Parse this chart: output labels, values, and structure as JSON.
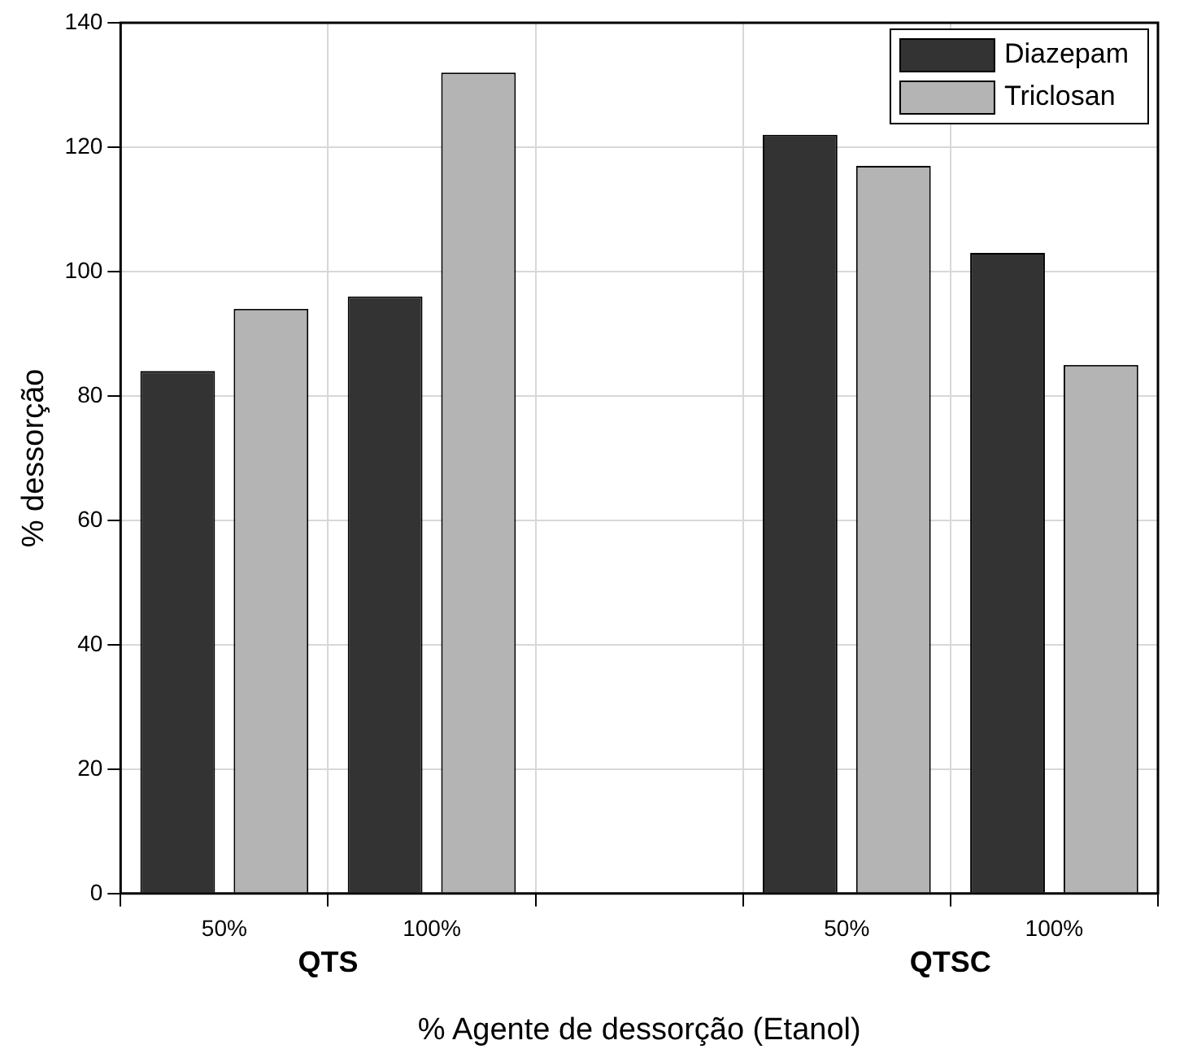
{
  "chart_data": {
    "type": "bar",
    "xlabel": "% Agente de dessorção (Etanol)",
    "ylabel": "% dessorção",
    "categories": [
      "50%",
      "100%",
      null,
      "50%",
      "100%"
    ],
    "series": [
      {
        "name": "Diazepam",
        "color": "#333333",
        "values": [
          84,
          96,
          null,
          122,
          103
        ]
      },
      {
        "name": "Triclosan",
        "color": "#b4b4b4",
        "values": [
          94,
          132,
          null,
          117,
          85
        ]
      }
    ],
    "ylim": [
      0,
      140
    ],
    "yticks": [
      0,
      20,
      40,
      60,
      80,
      100,
      120,
      140
    ],
    "grid": true,
    "legend": "top right",
    "annotations": [
      "QTS",
      "QTSC"
    ]
  }
}
